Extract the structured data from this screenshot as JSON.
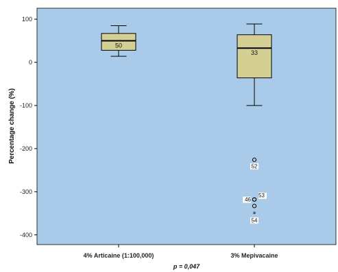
{
  "chart_data": {
    "type": "box",
    "ylabel": "Percentage change (%)",
    "ylim": [
      -420,
      120
    ],
    "yticks": [
      100,
      0,
      -100,
      -200,
      -300,
      -400
    ],
    "categories": [
      "4% Articaine  (1:100,000)",
      "3% Mepivacaine"
    ],
    "boxes": [
      {
        "category": "4% Articaine  (1:100,000)",
        "whisker_low": 14,
        "q1": 28,
        "median": 50,
        "q3": 67,
        "whisker_high": 85,
        "median_label": "50",
        "outliers": []
      },
      {
        "category": "3% Mepivacaine",
        "whisker_low": -100,
        "q1": -36,
        "median": 33,
        "q3": 64,
        "whisker_high": 89,
        "median_label": "33",
        "outliers": [
          {
            "value": -226,
            "label": "52",
            "marker": "circle"
          },
          {
            "value": -318,
            "label": "46",
            "marker": "circle"
          },
          {
            "value": -318,
            "label": "53",
            "marker": "circle"
          },
          {
            "value": -333,
            "label": "",
            "marker": "circle"
          },
          {
            "value": -350,
            "label": "54",
            "marker": "star"
          }
        ]
      }
    ],
    "footnote": "p = 0,047",
    "grid": false,
    "colors": {
      "plot_background": "#a9cbe9",
      "box_fill": "#d4cf93",
      "stroke": "#000000"
    }
  }
}
